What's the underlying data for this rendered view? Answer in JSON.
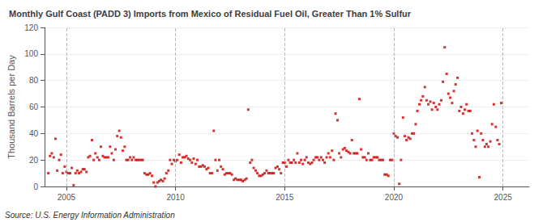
{
  "chart_data": {
    "type": "scatter",
    "title": "Monthly Gulf Coast (PADD 3) Imports from Mexico of Residual Fuel Oil, Greater Than 1% Sulfur",
    "ylabel": "Thousand Barrels per Day",
    "annotations": [
      "Source: U.S. Energy Information Administration"
    ],
    "color": "#cc0000",
    "marker": "square",
    "grid": true,
    "xlim": [
      2004.0,
      2026.2
    ],
    "xticks": [
      2005,
      2010,
      2015,
      2020,
      2025
    ],
    "ylim": [
      0,
      120
    ],
    "yticks": [
      0,
      20,
      40,
      60,
      80,
      100,
      120
    ],
    "x": [
      2004.17,
      2004.25,
      2004.33,
      2004.42,
      2004.5,
      2004.58,
      2004.67,
      2004.75,
      2004.83,
      2004.92,
      2005.0,
      2005.08,
      2005.17,
      2005.25,
      2005.33,
      2005.42,
      2005.5,
      2005.58,
      2005.67,
      2005.75,
      2005.83,
      2005.92,
      2006.0,
      2006.08,
      2006.17,
      2006.25,
      2006.33,
      2006.42,
      2006.5,
      2006.58,
      2006.67,
      2006.75,
      2006.83,
      2006.92,
      2007.0,
      2007.08,
      2007.17,
      2007.25,
      2007.33,
      2007.42,
      2007.5,
      2007.58,
      2007.67,
      2007.75,
      2007.83,
      2007.92,
      2008.0,
      2008.08,
      2008.17,
      2008.25,
      2008.33,
      2008.42,
      2008.5,
      2008.58,
      2008.67,
      2008.75,
      2008.83,
      2008.92,
      2009.0,
      2009.08,
      2009.17,
      2009.25,
      2009.33,
      2009.42,
      2009.5,
      2009.58,
      2009.67,
      2009.75,
      2009.83,
      2009.92,
      2010.0,
      2010.08,
      2010.17,
      2010.25,
      2010.33,
      2010.42,
      2010.5,
      2010.58,
      2010.67,
      2010.75,
      2010.83,
      2010.92,
      2011.0,
      2011.08,
      2011.17,
      2011.25,
      2011.33,
      2011.42,
      2011.5,
      2011.58,
      2011.67,
      2011.75,
      2011.83,
      2011.92,
      2012.0,
      2012.08,
      2012.17,
      2012.25,
      2012.33,
      2012.42,
      2012.5,
      2012.58,
      2012.67,
      2012.75,
      2012.83,
      2012.92,
      2013.0,
      2013.08,
      2013.17,
      2013.25,
      2013.33,
      2013.42,
      2013.5,
      2013.58,
      2013.67,
      2013.75,
      2013.83,
      2013.92,
      2014.0,
      2014.08,
      2014.17,
      2014.25,
      2014.33,
      2014.42,
      2014.5,
      2014.58,
      2014.67,
      2014.75,
      2014.83,
      2014.92,
      2015.0,
      2015.08,
      2015.17,
      2015.25,
      2015.33,
      2015.42,
      2015.5,
      2015.58,
      2015.67,
      2015.75,
      2015.83,
      2015.92,
      2016.0,
      2016.08,
      2016.17,
      2016.25,
      2016.33,
      2016.42,
      2016.5,
      2016.58,
      2016.67,
      2016.75,
      2016.83,
      2016.92,
      2017.0,
      2017.08,
      2017.17,
      2017.25,
      2017.33,
      2017.42,
      2017.5,
      2017.58,
      2017.67,
      2017.75,
      2017.83,
      2017.92,
      2018.0,
      2018.08,
      2018.17,
      2018.25,
      2018.33,
      2018.42,
      2018.5,
      2018.58,
      2018.67,
      2018.75,
      2018.83,
      2018.92,
      2019.0,
      2019.08,
      2019.17,
      2019.25,
      2019.33,
      2019.42,
      2019.5,
      2019.58,
      2019.67,
      2019.75,
      2019.83,
      2019.92,
      2020.0,
      2020.08,
      2020.17,
      2020.25,
      2020.33,
      2020.42,
      2020.5,
      2020.58,
      2020.67,
      2020.75,
      2020.83,
      2020.92,
      2021.0,
      2021.08,
      2021.17,
      2021.25,
      2021.33,
      2021.42,
      2021.5,
      2021.58,
      2021.67,
      2021.75,
      2021.83,
      2021.92,
      2022.0,
      2022.08,
      2022.17,
      2022.25,
      2022.33,
      2022.42,
      2022.5,
      2022.58,
      2022.67,
      2022.75,
      2022.83,
      2022.92,
      2023.0,
      2023.08,
      2023.17,
      2023.25,
      2023.33,
      2023.42,
      2023.5,
      2023.58,
      2023.67,
      2023.75,
      2023.83,
      2023.92,
      2024.0,
      2024.08,
      2024.17,
      2024.25,
      2024.33,
      2024.42,
      2024.5,
      2024.58,
      2024.67,
      2024.75,
      2024.83,
      2024.92
    ],
    "values": [
      10,
      23,
      25,
      22,
      36,
      12,
      20,
      24,
      10,
      15,
      11,
      10,
      10,
      14,
      1,
      10,
      12,
      10,
      11,
      13,
      13,
      11,
      22,
      23,
      35,
      20,
      25,
      22,
      20,
      30,
      23,
      22,
      22,
      22,
      30,
      25,
      20,
      28,
      38,
      42,
      37,
      27,
      30,
      20,
      20,
      22,
      20,
      22,
      20,
      20,
      20,
      20,
      20,
      10,
      9,
      9,
      10,
      8,
      3,
      0,
      3,
      4,
      5,
      4,
      6,
      10,
      12,
      20,
      17,
      20,
      19,
      20,
      24,
      18,
      22,
      22,
      23,
      21,
      20,
      18,
      21,
      17,
      20,
      15,
      15,
      16,
      15,
      13,
      14,
      10,
      10,
      42,
      20,
      12,
      20,
      15,
      13,
      9,
      10,
      10,
      10,
      9,
      5,
      6,
      5,
      5,
      5,
      4,
      5,
      6,
      58,
      18,
      20,
      14,
      12,
      10,
      8,
      8,
      9,
      10,
      12,
      10,
      10,
      10,
      10,
      14,
      15,
      13,
      10,
      18,
      18,
      15,
      20,
      18,
      18,
      20,
      18,
      25,
      18,
      20,
      17,
      20,
      22,
      18,
      17,
      18,
      20,
      22,
      22,
      20,
      22,
      20,
      18,
      22,
      25,
      22,
      27,
      20,
      55,
      50,
      25,
      22,
      28,
      29,
      27,
      26,
      25,
      35,
      25,
      25,
      25,
      66,
      28,
      22,
      22,
      20,
      25,
      20,
      20,
      22,
      22,
      22,
      20,
      20,
      20,
      9,
      9,
      8,
      20,
      20,
      40,
      38,
      37,
      2,
      20,
      52,
      38,
      35,
      37,
      36,
      40,
      40,
      47,
      57,
      62,
      65,
      68,
      75,
      65,
      62,
      64,
      58,
      63,
      60,
      58,
      62,
      65,
      79,
      105,
      85,
      70,
      67,
      63,
      72,
      77,
      82,
      57,
      60,
      55,
      58,
      62,
      57,
      57,
      40,
      35,
      30,
      42,
      7,
      40,
      35,
      30,
      32,
      30,
      34,
      47,
      62,
      45,
      35,
      32,
      63
    ]
  }
}
